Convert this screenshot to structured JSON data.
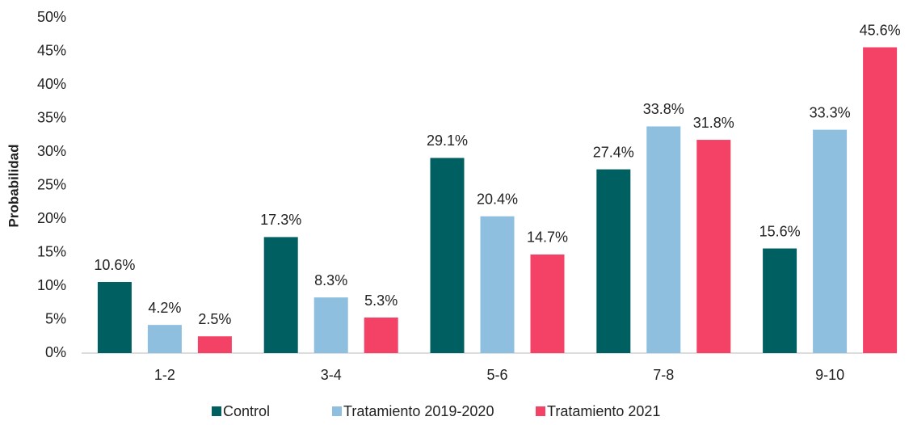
{
  "chart_data": {
    "type": "bar",
    "y_label": "Probabilidad",
    "categories": [
      "1-2",
      "3-4",
      "5-6",
      "7-8",
      "9-10"
    ],
    "series": [
      {
        "name": "Control",
        "color": "#005f60",
        "values": [
          10.6,
          17.3,
          29.1,
          27.4,
          15.6
        ],
        "value_labels": [
          "10.6%",
          "17.3%",
          "29.1%",
          "27.4%",
          "15.6%"
        ]
      },
      {
        "name": "Tratamiento 2019-2020",
        "color": "#8fbfdf",
        "values": [
          4.2,
          8.3,
          20.4,
          33.8,
          33.3
        ],
        "value_labels": [
          "4.2%",
          "8.3%",
          "20.4%",
          "33.8%",
          "33.3%"
        ]
      },
      {
        "name": "Tratamiento 2021",
        "color": "#f44166",
        "values": [
          2.5,
          5.3,
          14.7,
          31.8,
          45.6
        ],
        "value_labels": [
          "2.5%",
          "5.3%",
          "14.7%",
          "31.8%",
          "45.6%"
        ]
      }
    ],
    "ylim": [
      0,
      50
    ],
    "yticks": [
      {
        "value": 0,
        "label": "0%"
      },
      {
        "value": 5,
        "label": "5%"
      },
      {
        "value": 10,
        "label": "10%"
      },
      {
        "value": 15,
        "label": "15%"
      },
      {
        "value": 20,
        "label": "20%"
      },
      {
        "value": 25,
        "label": "25%"
      },
      {
        "value": 30,
        "label": "30%"
      },
      {
        "value": 35,
        "label": "35%"
      },
      {
        "value": 40,
        "label": "40%"
      },
      {
        "value": 45,
        "label": "45%"
      },
      {
        "value": 50,
        "label": "50%"
      }
    ],
    "grid": false,
    "legend": "bottom"
  }
}
